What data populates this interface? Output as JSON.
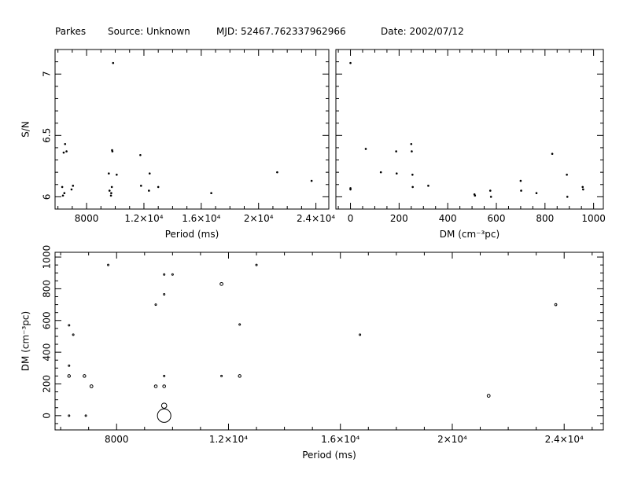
{
  "header": {
    "telescope": "Parkes",
    "source": "Source: Unknown",
    "mjd": "MJD: 52467.762337962966",
    "date": "Date: 2002/07/12"
  },
  "chart_data": [
    {
      "id": "sn_vs_period",
      "type": "scatter",
      "xlabel": "Period (ms)",
      "ylabel": "S/N",
      "xlim": [
        5800,
        24900
      ],
      "ylim": [
        5.9,
        7.2
      ],
      "xticks": [
        8000,
        12000,
        16000,
        20000,
        24000
      ],
      "xtick_labels": [
        "8000",
        "1.2×10⁴",
        "1.6×10⁴",
        "2×10⁴",
        "2.4×10⁴"
      ],
      "yticks": [
        6,
        6.5,
        7
      ],
      "ytick_labels": [
        "6",
        "6.5",
        "7"
      ],
      "marker": "dot",
      "points": [
        {
          "x": 6400,
          "y": 6.36
        },
        {
          "x": 6500,
          "y": 6.43
        },
        {
          "x": 6600,
          "y": 6.37
        },
        {
          "x": 6300,
          "y": 6.08
        },
        {
          "x": 6350,
          "y": 6.01
        },
        {
          "x": 6450,
          "y": 6.03
        },
        {
          "x": 6950,
          "y": 6.06
        },
        {
          "x": 7050,
          "y": 6.09
        },
        {
          "x": 9550,
          "y": 6.19
        },
        {
          "x": 9600,
          "y": 6.05
        },
        {
          "x": 9700,
          "y": 6.01
        },
        {
          "x": 9720,
          "y": 6.03
        },
        {
          "x": 9760,
          "y": 6.08
        },
        {
          "x": 9780,
          "y": 6.38
        },
        {
          "x": 9800,
          "y": 6.37
        },
        {
          "x": 9850,
          "y": 7.09
        },
        {
          "x": 10100,
          "y": 6.18
        },
        {
          "x": 11750,
          "y": 6.34
        },
        {
          "x": 11800,
          "y": 6.09
        },
        {
          "x": 12400,
          "y": 6.19
        },
        {
          "x": 12350,
          "y": 6.05
        },
        {
          "x": 13000,
          "y": 6.08
        },
        {
          "x": 16700,
          "y": 6.03
        },
        {
          "x": 21300,
          "y": 6.2
        },
        {
          "x": 23700,
          "y": 6.13
        }
      ]
    },
    {
      "id": "sn_vs_dm",
      "type": "scatter",
      "xlabel": "DM (cm⁻³pc)",
      "ylabel": "",
      "xlim": [
        -60,
        1040
      ],
      "ylim": [
        5.9,
        7.2
      ],
      "xticks": [
        0,
        200,
        400,
        600,
        800,
        1000
      ],
      "xtick_labels": [
        "0",
        "200",
        "400",
        "600",
        "800",
        "1000"
      ],
      "yticks": [
        6,
        6.5,
        7
      ],
      "marker": "dot",
      "points": [
        {
          "x": 0,
          "y": 7.09
        },
        {
          "x": 0,
          "y": 6.07
        },
        {
          "x": 0,
          "y": 6.06
        },
        {
          "x": 63,
          "y": 6.39
        },
        {
          "x": 125,
          "y": 6.2
        },
        {
          "x": 188,
          "y": 6.37
        },
        {
          "x": 190,
          "y": 6.19
        },
        {
          "x": 250,
          "y": 6.43
        },
        {
          "x": 252,
          "y": 6.37
        },
        {
          "x": 255,
          "y": 6.18
        },
        {
          "x": 256,
          "y": 6.08
        },
        {
          "x": 320,
          "y": 6.09
        },
        {
          "x": 510,
          "y": 6.02
        },
        {
          "x": 512,
          "y": 6.01
        },
        {
          "x": 575,
          "y": 6.05
        },
        {
          "x": 578,
          "y": 6.0
        },
        {
          "x": 700,
          "y": 6.13
        },
        {
          "x": 702,
          "y": 6.05
        },
        {
          "x": 765,
          "y": 6.03
        },
        {
          "x": 830,
          "y": 6.35
        },
        {
          "x": 890,
          "y": 6.18
        },
        {
          "x": 892,
          "y": 6.0
        },
        {
          "x": 955,
          "y": 6.08
        },
        {
          "x": 957,
          "y": 6.06
        }
      ]
    },
    {
      "id": "dm_vs_period",
      "type": "scatter",
      "xlabel": "Period (ms)",
      "ylabel": "DM (cm⁻³pc)",
      "xlim": [
        5800,
        25400
      ],
      "ylim": [
        -90,
        1030
      ],
      "xticks": [
        8000,
        12000,
        16000,
        20000,
        24000
      ],
      "xtick_labels": [
        "8000",
        "1.2×10⁴",
        "1.6×10⁴",
        "2×10⁴",
        "2.4×10⁴"
      ],
      "yticks": [
        0,
        200,
        400,
        600,
        800,
        1000
      ],
      "ytick_labels": [
        "0",
        "200",
        "400",
        "600",
        "800",
        "1000"
      ],
      "marker": "circle sized by S/N",
      "points": [
        {
          "x": 7700,
          "y": 950,
          "s": 6.0
        },
        {
          "x": 9700,
          "y": 890,
          "s": 6.03
        },
        {
          "x": 10000,
          "y": 890,
          "s": 6.08
        },
        {
          "x": 13000,
          "y": 950,
          "s": 6.02
        },
        {
          "x": 11750,
          "y": 830,
          "s": 6.2
        },
        {
          "x": 9700,
          "y": 765,
          "s": 6.03
        },
        {
          "x": 9400,
          "y": 700,
          "s": 6.05
        },
        {
          "x": 23700,
          "y": 700,
          "s": 6.13
        },
        {
          "x": 6300,
          "y": 570,
          "s": 6.01
        },
        {
          "x": 12400,
          "y": 575,
          "s": 6.05
        },
        {
          "x": 6450,
          "y": 510,
          "s": 6.01
        },
        {
          "x": 16700,
          "y": 510,
          "s": 6.03
        },
        {
          "x": 6300,
          "y": 315,
          "s": 6.05
        },
        {
          "x": 6300,
          "y": 250,
          "s": 6.18
        },
        {
          "x": 6850,
          "y": 250,
          "s": 6.18
        },
        {
          "x": 9700,
          "y": 250,
          "s": 6.03
        },
        {
          "x": 11750,
          "y": 250,
          "s": 6.05
        },
        {
          "x": 12400,
          "y": 250,
          "s": 6.18
        },
        {
          "x": 7100,
          "y": 185,
          "s": 6.2
        },
        {
          "x": 9400,
          "y": 185,
          "s": 6.19
        },
        {
          "x": 9700,
          "y": 185,
          "s": 6.19
        },
        {
          "x": 21300,
          "y": 125,
          "s": 6.2
        },
        {
          "x": 9700,
          "y": 63,
          "s": 6.39
        },
        {
          "x": 6300,
          "y": 0,
          "s": 6.07
        },
        {
          "x": 6900,
          "y": 0,
          "s": 6.06
        },
        {
          "x": 9700,
          "y": 0,
          "s": 7.09
        }
      ]
    }
  ]
}
